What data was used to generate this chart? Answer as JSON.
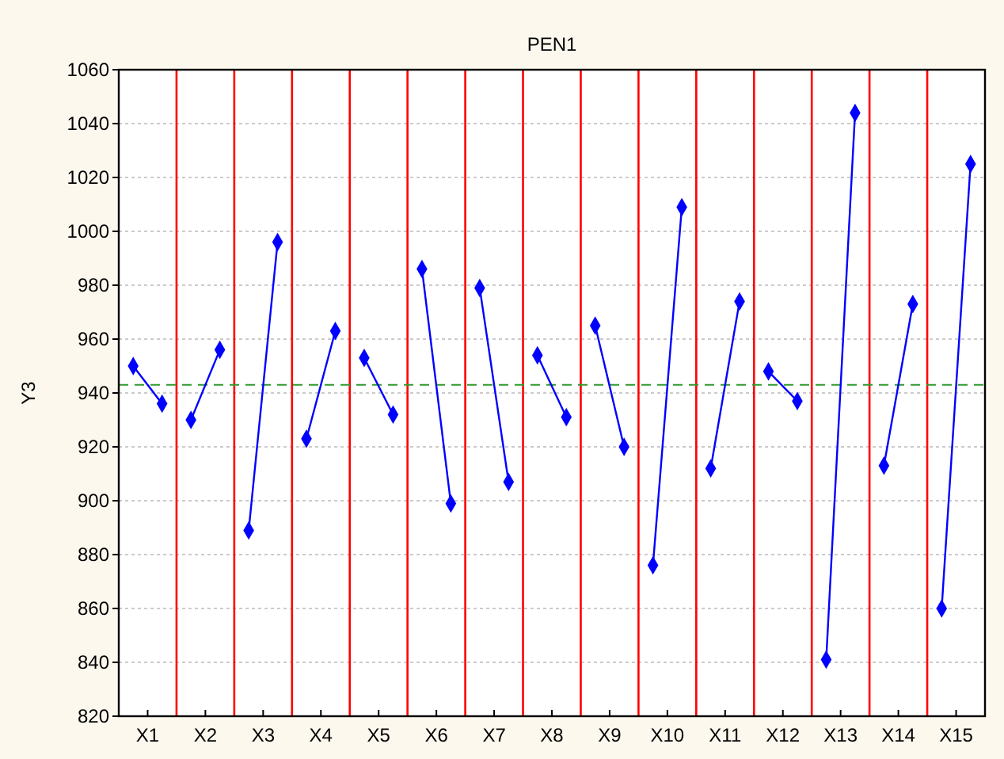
{
  "chart_data": {
    "type": "line",
    "title": "PEN1",
    "ylabel": "Y3",
    "categories": [
      null,
      "X1",
      null,
      null,
      null,
      "X2",
      null,
      null,
      null,
      "X3",
      null,
      null,
      null,
      "X4",
      null,
      null,
      null,
      "X5",
      null,
      null,
      null,
      "X6",
      null,
      null,
      null,
      "X7",
      null,
      null,
      null,
      "X8",
      null,
      null,
      null,
      "X9",
      null,
      null,
      null,
      "X10",
      null,
      null,
      null,
      "X11",
      null,
      null,
      null,
      "X12",
      null,
      null,
      null,
      "X13",
      null,
      null,
      null,
      "X14",
      null,
      null,
      null,
      "X15",
      null
    ],
    "ylim": [
      820,
      1060
    ],
    "yticks": [
      820,
      840,
      860,
      880,
      900,
      920,
      940,
      960,
      980,
      1000,
      1020,
      1040,
      1060
    ],
    "grid": true,
    "marker": "diamond",
    "line_style": "solid",
    "series": [
      {
        "color": "#0000ff",
        "values": [
          950,
          null,
          936,
          null,
          null,
          null,
          null,
          null,
          null,
          null,
          null,
          null,
          null,
          null,
          null,
          null,
          null,
          null,
          null,
          null,
          null,
          null,
          null,
          null,
          null,
          null,
          null,
          null,
          null,
          null,
          null,
          null,
          null,
          null,
          null,
          null,
          null,
          null,
          null,
          null,
          null,
          null,
          null,
          null,
          null,
          null,
          null,
          null,
          null,
          null,
          null,
          null,
          null,
          null,
          null,
          null,
          null,
          null,
          null
        ]
      },
      {
        "color": "#0000ff",
        "values": [
          null,
          null,
          null,
          null,
          930,
          null,
          956,
          null,
          null,
          null,
          null,
          null,
          null,
          null,
          null,
          null,
          null,
          null,
          null,
          null,
          null,
          null,
          null,
          null,
          null,
          null,
          null,
          null,
          null,
          null,
          null,
          null,
          null,
          null,
          null,
          null,
          null,
          null,
          null,
          null,
          null,
          null,
          null,
          null,
          null,
          null,
          null,
          null,
          null,
          null,
          null,
          null,
          null,
          null,
          null,
          null,
          null,
          null,
          null
        ]
      },
      {
        "color": "#0000ff",
        "values": [
          null,
          null,
          null,
          null,
          null,
          null,
          null,
          null,
          889,
          null,
          996,
          null,
          null,
          null,
          null,
          null,
          null,
          null,
          null,
          null,
          null,
          null,
          null,
          null,
          null,
          null,
          null,
          null,
          null,
          null,
          null,
          null,
          null,
          null,
          null,
          null,
          null,
          null,
          null,
          null,
          null,
          null,
          null,
          null,
          null,
          null,
          null,
          null,
          null,
          null,
          null,
          null,
          null,
          null,
          null,
          null,
          null,
          null,
          null
        ]
      },
      {
        "color": "#0000ff",
        "values": [
          null,
          null,
          null,
          null,
          null,
          null,
          null,
          null,
          null,
          null,
          null,
          null,
          923,
          null,
          963,
          null,
          null,
          null,
          null,
          null,
          null,
          null,
          null,
          null,
          null,
          null,
          null,
          null,
          null,
          null,
          null,
          null,
          null,
          null,
          null,
          null,
          null,
          null,
          null,
          null,
          null,
          null,
          null,
          null,
          null,
          null,
          null,
          null,
          null,
          null,
          null,
          null,
          null,
          null,
          null,
          null,
          null,
          null,
          null
        ]
      },
      {
        "color": "#0000ff",
        "values": [
          null,
          null,
          null,
          null,
          null,
          null,
          null,
          null,
          null,
          null,
          null,
          null,
          null,
          null,
          null,
          null,
          953,
          null,
          932,
          null,
          null,
          null,
          null,
          null,
          null,
          null,
          null,
          null,
          null,
          null,
          null,
          null,
          null,
          null,
          null,
          null,
          null,
          null,
          null,
          null,
          null,
          null,
          null,
          null,
          null,
          null,
          null,
          null,
          null,
          null,
          null,
          null,
          null,
          null,
          null,
          null,
          null,
          null,
          null
        ]
      },
      {
        "color": "#0000ff",
        "values": [
          null,
          null,
          null,
          null,
          null,
          null,
          null,
          null,
          null,
          null,
          null,
          null,
          null,
          null,
          null,
          null,
          null,
          null,
          null,
          null,
          986,
          null,
          899,
          null,
          null,
          null,
          null,
          null,
          null,
          null,
          null,
          null,
          null,
          null,
          null,
          null,
          null,
          null,
          null,
          null,
          null,
          null,
          null,
          null,
          null,
          null,
          null,
          null,
          null,
          null,
          null,
          null,
          null,
          null,
          null,
          null,
          null,
          null,
          null
        ]
      },
      {
        "color": "#0000ff",
        "values": [
          null,
          null,
          null,
          null,
          null,
          null,
          null,
          null,
          null,
          null,
          null,
          null,
          null,
          null,
          null,
          null,
          null,
          null,
          null,
          null,
          null,
          null,
          null,
          null,
          979,
          null,
          907,
          null,
          null,
          null,
          null,
          null,
          null,
          null,
          null,
          null,
          null,
          null,
          null,
          null,
          null,
          null,
          null,
          null,
          null,
          null,
          null,
          null,
          null,
          null,
          null,
          null,
          null,
          null,
          null,
          null,
          null,
          null,
          null
        ]
      },
      {
        "color": "#0000ff",
        "values": [
          null,
          null,
          null,
          null,
          null,
          null,
          null,
          null,
          null,
          null,
          null,
          null,
          null,
          null,
          null,
          null,
          null,
          null,
          null,
          null,
          null,
          null,
          null,
          null,
          null,
          null,
          null,
          null,
          954,
          null,
          931,
          null,
          null,
          null,
          null,
          null,
          null,
          null,
          null,
          null,
          null,
          null,
          null,
          null,
          null,
          null,
          null,
          null,
          null,
          null,
          null,
          null,
          null,
          null,
          null,
          null,
          null,
          null,
          null
        ]
      },
      {
        "color": "#0000ff",
        "values": [
          null,
          null,
          null,
          null,
          null,
          null,
          null,
          null,
          null,
          null,
          null,
          null,
          null,
          null,
          null,
          null,
          null,
          null,
          null,
          null,
          null,
          null,
          null,
          null,
          null,
          null,
          null,
          null,
          null,
          null,
          null,
          null,
          965,
          null,
          920,
          null,
          null,
          null,
          null,
          null,
          null,
          null,
          null,
          null,
          null,
          null,
          null,
          null,
          null,
          null,
          null,
          null,
          null,
          null,
          null,
          null,
          null,
          null,
          null
        ]
      },
      {
        "color": "#0000ff",
        "values": [
          null,
          null,
          null,
          null,
          null,
          null,
          null,
          null,
          null,
          null,
          null,
          null,
          null,
          null,
          null,
          null,
          null,
          null,
          null,
          null,
          null,
          null,
          null,
          null,
          null,
          null,
          null,
          null,
          null,
          null,
          null,
          null,
          null,
          null,
          null,
          null,
          876,
          null,
          1009,
          null,
          null,
          null,
          null,
          null,
          null,
          null,
          null,
          null,
          null,
          null,
          null,
          null,
          null,
          null,
          null,
          null,
          null,
          null,
          null
        ]
      },
      {
        "color": "#0000ff",
        "values": [
          null,
          null,
          null,
          null,
          null,
          null,
          null,
          null,
          null,
          null,
          null,
          null,
          null,
          null,
          null,
          null,
          null,
          null,
          null,
          null,
          null,
          null,
          null,
          null,
          null,
          null,
          null,
          null,
          null,
          null,
          null,
          null,
          null,
          null,
          null,
          null,
          null,
          null,
          null,
          null,
          912,
          null,
          974,
          null,
          null,
          null,
          null,
          null,
          null,
          null,
          null,
          null,
          null,
          null,
          null,
          null,
          null,
          null,
          null
        ]
      },
      {
        "color": "#0000ff",
        "values": [
          null,
          null,
          null,
          null,
          null,
          null,
          null,
          null,
          null,
          null,
          null,
          null,
          null,
          null,
          null,
          null,
          null,
          null,
          null,
          null,
          null,
          null,
          null,
          null,
          null,
          null,
          null,
          null,
          null,
          null,
          null,
          null,
          null,
          null,
          null,
          null,
          null,
          null,
          null,
          null,
          null,
          null,
          null,
          null,
          948,
          null,
          937,
          null,
          null,
          null,
          null,
          null,
          null,
          null,
          null,
          null,
          null,
          null,
          null
        ]
      },
      {
        "color": "#0000ff",
        "values": [
          null,
          null,
          null,
          null,
          null,
          null,
          null,
          null,
          null,
          null,
          null,
          null,
          null,
          null,
          null,
          null,
          null,
          null,
          null,
          null,
          null,
          null,
          null,
          null,
          null,
          null,
          null,
          null,
          null,
          null,
          null,
          null,
          null,
          null,
          null,
          null,
          null,
          null,
          null,
          null,
          null,
          null,
          null,
          null,
          null,
          null,
          null,
          null,
          841,
          null,
          1044,
          null,
          null,
          null,
          null,
          null,
          null,
          null,
          null
        ]
      },
      {
        "color": "#0000ff",
        "values": [
          null,
          null,
          null,
          null,
          null,
          null,
          null,
          null,
          null,
          null,
          null,
          null,
          null,
          null,
          null,
          null,
          null,
          null,
          null,
          null,
          null,
          null,
          null,
          null,
          null,
          null,
          null,
          null,
          null,
          null,
          null,
          null,
          null,
          null,
          null,
          null,
          null,
          null,
          null,
          null,
          null,
          null,
          null,
          null,
          null,
          null,
          null,
          null,
          null,
          null,
          null,
          null,
          913,
          null,
          973,
          null,
          null,
          null,
          null
        ]
      },
      {
        "color": "#0000ff",
        "values": [
          null,
          null,
          null,
          null,
          null,
          null,
          null,
          null,
          null,
          null,
          null,
          null,
          null,
          null,
          null,
          null,
          null,
          null,
          null,
          null,
          null,
          null,
          null,
          null,
          null,
          null,
          null,
          null,
          null,
          null,
          null,
          null,
          null,
          null,
          null,
          null,
          null,
          null,
          null,
          null,
          null,
          null,
          null,
          null,
          null,
          null,
          null,
          null,
          null,
          null,
          null,
          null,
          null,
          null,
          null,
          null,
          860,
          null,
          1025
        ]
      }
    ],
    "ref_lines": [
      {
        "axis": "y",
        "value": 943,
        "color": "#2e9a2e",
        "line_style": "dashed"
      }
    ]
  }
}
